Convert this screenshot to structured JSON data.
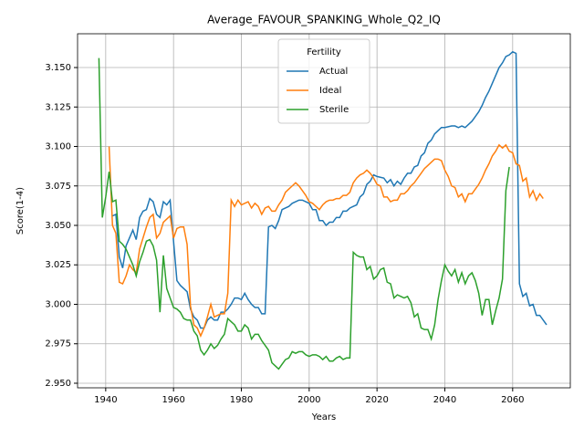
{
  "chart_data": {
    "type": "line",
    "title": "Average_FAVOUR_SPANKING_Whole_Q2_IQ",
    "xlabel": "Years",
    "ylabel": "Score(1-4)",
    "xlim": [
      1931.7,
      2077
    ],
    "ylim": [
      2.9471,
      3.1714
    ],
    "xticks": [
      1940,
      1960,
      1980,
      2000,
      2020,
      2040,
      2060
    ],
    "yticks": [
      {
        "value": 2.95,
        "label": "2.950"
      },
      {
        "value": 2.975,
        "label": "2.975"
      },
      {
        "value": 3.0,
        "label": "3.000"
      },
      {
        "value": 3.025,
        "label": "3.025"
      },
      {
        "value": 3.05,
        "label": "3.050"
      },
      {
        "value": 3.075,
        "label": "3.075"
      },
      {
        "value": 3.1,
        "label": "3.100"
      },
      {
        "value": 3.125,
        "label": "3.125"
      },
      {
        "value": 3.15,
        "label": "3.150"
      }
    ],
    "grid": true,
    "legend_title": "Fertility",
    "legend_position": "upper center",
    "series": [
      {
        "name": "Actual",
        "color": "#1f77b4",
        "x": [
          1942,
          1943,
          1944,
          1945,
          1946,
          1947,
          1948,
          1949,
          1950,
          1951,
          1952,
          1953,
          1954,
          1955,
          1956,
          1957,
          1958,
          1959,
          1960,
          1961,
          1962,
          1963,
          1964,
          1965,
          1966,
          1967,
          1968,
          1969,
          1970,
          1971,
          1972,
          1973,
          1974,
          1975,
          1976,
          1977,
          1978,
          1979,
          1980,
          1981,
          1982,
          1983,
          1984,
          1985,
          1986,
          1987,
          1988,
          1989,
          1990,
          1991,
          1992,
          1993,
          1994,
          1995,
          1996,
          1997,
          1998,
          1999,
          2000,
          2001,
          2002,
          2003,
          2004,
          2005,
          2006,
          2007,
          2008,
          2009,
          2010,
          2011,
          2012,
          2013,
          2014,
          2015,
          2016,
          2017,
          2018,
          2019,
          2020,
          2022,
          2023,
          2024,
          2025,
          2026,
          2027,
          2028,
          2029,
          2030,
          2031,
          2032,
          2033,
          2034,
          2035,
          2036,
          2037,
          2038,
          2039,
          2040,
          2042,
          2043,
          2044,
          2045,
          2046,
          2047,
          2048,
          2049,
          2050,
          2051,
          2052,
          2053,
          2054,
          2055,
          2056,
          2057,
          2058,
          2059,
          2060,
          2061,
          2062,
          2063,
          2064,
          2065,
          2066,
          2067,
          2068,
          2070
        ],
        "values": [
          3.056,
          3.057,
          3.03,
          3.023,
          3.037,
          3.042,
          3.047,
          3.041,
          3.055,
          3.059,
          3.06,
          3.067,
          3.065,
          3.057,
          3.055,
          3.065,
          3.063,
          3.066,
          3.04,
          3.015,
          3.012,
          3.01,
          3.008,
          2.997,
          2.992,
          2.99,
          2.985,
          2.985,
          2.99,
          2.992,
          2.99,
          2.99,
          2.995,
          2.995,
          2.997,
          3.0,
          3.004,
          3.004,
          3.003,
          3.007,
          3.003,
          3.0,
          2.998,
          2.998,
          2.994,
          2.994,
          3.049,
          3.05,
          3.048,
          3.053,
          3.06,
          3.061,
          3.062,
          3.064,
          3.065,
          3.066,
          3.066,
          3.065,
          3.064,
          3.06,
          3.06,
          3.053,
          3.053,
          3.05,
          3.052,
          3.052,
          3.055,
          3.055,
          3.059,
          3.059,
          3.061,
          3.062,
          3.063,
          3.068,
          3.07,
          3.076,
          3.078,
          3.082,
          3.081,
          3.08,
          3.077,
          3.079,
          3.075,
          3.078,
          3.076,
          3.08,
          3.083,
          3.083,
          3.087,
          3.088,
          3.094,
          3.096,
          3.102,
          3.104,
          3.108,
          3.11,
          3.112,
          3.112,
          3.113,
          3.113,
          3.112,
          3.113,
          3.112,
          3.114,
          3.116,
          3.119,
          3.122,
          3.126,
          3.131,
          3.135,
          3.14,
          3.145,
          3.15,
          3.153,
          3.157,
          3.158,
          3.16,
          3.159,
          3.013,
          3.005,
          3.007,
          2.999,
          3.0,
          2.993,
          2.993,
          2.987
        ]
      },
      {
        "name": "Ideal",
        "color": "#ff7f0e",
        "x": [
          1941,
          1942,
          1943,
          1944,
          1945,
          1946,
          1947,
          1948,
          1949,
          1950,
          1951,
          1952,
          1953,
          1954,
          1955,
          1956,
          1957,
          1958,
          1959,
          1960,
          1961,
          1962,
          1963,
          1964,
          1965,
          1966,
          1967,
          1968,
          1969,
          1970,
          1971,
          1972,
          1973,
          1974,
          1975,
          1976,
          1977,
          1978,
          1979,
          1980,
          1981,
          1982,
          1983,
          1984,
          1985,
          1986,
          1987,
          1988,
          1989,
          1990,
          1991,
          1992,
          1993,
          1994,
          1995,
          1996,
          1997,
          1998,
          1999,
          2000,
          2001,
          2002,
          2003,
          2004,
          2005,
          2006,
          2007,
          2008,
          2009,
          2010,
          2011,
          2012,
          2013,
          2014,
          2015,
          2016,
          2017,
          2018,
          2019,
          2020,
          2021,
          2022,
          2023,
          2024,
          2025,
          2026,
          2027,
          2028,
          2029,
          2030,
          2031,
          2032,
          2033,
          2034,
          2035,
          2036,
          2037,
          2038,
          2039,
          2040,
          2041,
          2042,
          2043,
          2044,
          2045,
          2046,
          2047,
          2048,
          2049,
          2050,
          2051,
          2052,
          2053,
          2054,
          2055,
          2056,
          2057,
          2058,
          2059,
          2060,
          2061,
          2062,
          2063,
          2064,
          2065,
          2066,
          2067,
          2068,
          2069
        ],
        "values": [
          3.1,
          3.05,
          3.045,
          3.014,
          3.013,
          3.018,
          3.025,
          3.022,
          3.02,
          3.035,
          3.042,
          3.049,
          3.055,
          3.057,
          3.042,
          3.045,
          3.052,
          3.054,
          3.056,
          3.042,
          3.048,
          3.049,
          3.049,
          3.038,
          2.999,
          2.987,
          2.985,
          2.98,
          2.985,
          2.992,
          3.0,
          2.992,
          2.993,
          2.994,
          2.994,
          3.007,
          3.066,
          3.062,
          3.066,
          3.063,
          3.064,
          3.065,
          3.061,
          3.064,
          3.062,
          3.057,
          3.061,
          3.062,
          3.059,
          3.059,
          3.063,
          3.066,
          3.071,
          3.073,
          3.075,
          3.077,
          3.075,
          3.072,
          3.069,
          3.065,
          3.064,
          3.062,
          3.06,
          3.063,
          3.065,
          3.066,
          3.066,
          3.067,
          3.067,
          3.069,
          3.069,
          3.071,
          3.077,
          3.08,
          3.082,
          3.083,
          3.085,
          3.083,
          3.08,
          3.076,
          3.075,
          3.068,
          3.068,
          3.065,
          3.066,
          3.066,
          3.07,
          3.07,
          3.072,
          3.075,
          3.077,
          3.08,
          3.083,
          3.086,
          3.088,
          3.09,
          3.092,
          3.092,
          3.091,
          3.085,
          3.081,
          3.075,
          3.074,
          3.068,
          3.07,
          3.065,
          3.07,
          3.07,
          3.073,
          3.076,
          3.08,
          3.085,
          3.089,
          3.094,
          3.097,
          3.101,
          3.099,
          3.101,
          3.097,
          3.096,
          3.089,
          3.088,
          3.078,
          3.08,
          3.068,
          3.072,
          3.066,
          3.07,
          3.067
        ]
      },
      {
        "name": "Sterile",
        "color": "#2ca02c",
        "x": [
          1938,
          1939,
          1940,
          1941,
          1942,
          1943,
          1944,
          1945,
          1946,
          1947,
          1948,
          1949,
          1950,
          1951,
          1952,
          1953,
          1954,
          1955,
          1956,
          1957,
          1958,
          1959,
          1960,
          1961,
          1962,
          1963,
          1964,
          1965,
          1966,
          1967,
          1968,
          1969,
          1970,
          1971,
          1972,
          1973,
          1974,
          1975,
          1976,
          1977,
          1978,
          1979,
          1980,
          1981,
          1982,
          1983,
          1984,
          1985,
          1986,
          1987,
          1988,
          1989,
          1990,
          1991,
          1992,
          1993,
          1994,
          1995,
          1996,
          1997,
          1998,
          1999,
          2000,
          2001,
          2002,
          2003,
          2004,
          2005,
          2006,
          2007,
          2008,
          2009,
          2010,
          2011,
          2012,
          2013,
          2014,
          2015,
          2016,
          2017,
          2018,
          2019,
          2020,
          2021,
          2022,
          2023,
          2024,
          2025,
          2026,
          2027,
          2028,
          2029,
          2030,
          2031,
          2032,
          2033,
          2034,
          2035,
          2036,
          2037,
          2038,
          2039,
          2040,
          2041,
          2042,
          2043,
          2044,
          2045,
          2046,
          2047,
          2048,
          2049,
          2050,
          2051,
          2052,
          2053,
          2054,
          2055,
          2056,
          2057,
          2058,
          2059
        ],
        "values": [
          3.156,
          3.055,
          3.068,
          3.084,
          3.065,
          3.066,
          3.04,
          3.038,
          3.035,
          3.03,
          3.025,
          3.018,
          3.027,
          3.033,
          3.04,
          3.041,
          3.037,
          3.028,
          2.995,
          3.031,
          3.01,
          3.004,
          2.998,
          2.997,
          2.995,
          2.991,
          2.99,
          2.99,
          2.983,
          2.98,
          2.971,
          2.968,
          2.971,
          2.975,
          2.972,
          2.974,
          2.978,
          2.981,
          2.991,
          2.989,
          2.987,
          2.983,
          2.983,
          2.987,
          2.985,
          2.978,
          2.981,
          2.981,
          2.977,
          2.974,
          2.971,
          2.963,
          2.961,
          2.959,
          2.962,
          2.965,
          2.966,
          2.97,
          2.969,
          2.97,
          2.97,
          2.968,
          2.967,
          2.968,
          2.968,
          2.967,
          2.965,
          2.967,
          2.964,
          2.964,
          2.966,
          2.967,
          2.965,
          2.966,
          2.966,
          3.033,
          3.031,
          3.03,
          3.03,
          3.022,
          3.024,
          3.016,
          3.018,
          3.022,
          3.023,
          3.014,
          3.013,
          3.004,
          3.006,
          3.005,
          3.004,
          3.005,
          3.001,
          2.992,
          2.994,
          2.985,
          2.984,
          2.984,
          2.978,
          2.987,
          3.003,
          3.015,
          3.025,
          3.021,
          3.018,
          3.022,
          3.014,
          3.02,
          3.013,
          3.018,
          3.02,
          3.015,
          3.007,
          2.993,
          3.003,
          3.003,
          2.987,
          2.996,
          3.004,
          3.016,
          3.072,
          3.087
        ]
      }
    ]
  }
}
